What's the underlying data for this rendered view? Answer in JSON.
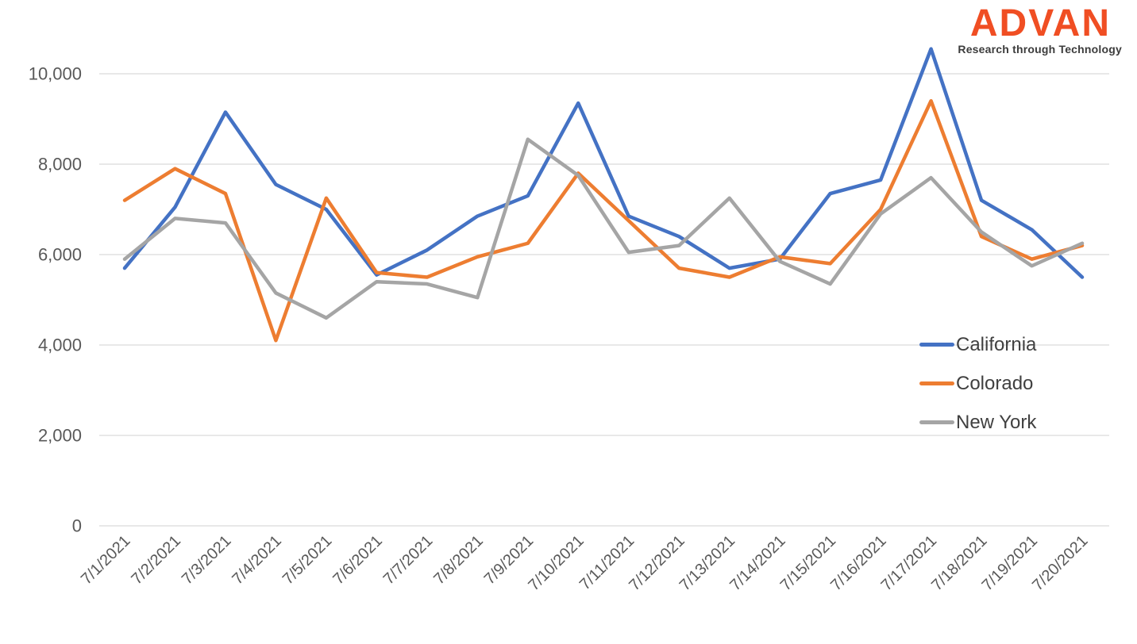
{
  "logo": {
    "brand": "ADVAN",
    "tagline": "Research through Technology",
    "brand_color": "#F04E23",
    "tagline_color": "#3C3C3C"
  },
  "chart_data": {
    "type": "line",
    "title": "",
    "xlabel": "",
    "ylabel": "",
    "categories": [
      "7/1/2021",
      "7/2/2021",
      "7/3/2021",
      "7/4/2021",
      "7/5/2021",
      "7/6/2021",
      "7/7/2021",
      "7/8/2021",
      "7/9/2021",
      "7/10/2021",
      "7/11/2021",
      "7/12/2021",
      "7/13/2021",
      "7/14/2021",
      "7/15/2021",
      "7/16/2021",
      "7/17/2021",
      "7/18/2021",
      "7/19/2021",
      "7/20/2021"
    ],
    "series": [
      {
        "name": "California",
        "color": "#4472C4",
        "values": [
          5700,
          7050,
          9150,
          7550,
          7000,
          5550,
          6100,
          6850,
          7300,
          9350,
          6850,
          6400,
          5700,
          5900,
          7350,
          7650,
          10550,
          7200,
          6550,
          5500
        ]
      },
      {
        "name": "Colorado",
        "color": "#ED7D31",
        "values": [
          7200,
          7900,
          7350,
          4100,
          7250,
          5600,
          5500,
          5950,
          6250,
          7800,
          6750,
          5700,
          5500,
          5950,
          5800,
          7000,
          9400,
          6400,
          5900,
          6200
        ]
      },
      {
        "name": "New York",
        "color": "#A5A5A5",
        "values": [
          5900,
          6800,
          6700,
          5150,
          4600,
          5400,
          5350,
          5050,
          8550,
          7750,
          6050,
          6200,
          7250,
          5850,
          5350,
          6900,
          7700,
          6500,
          5750,
          6250
        ]
      }
    ],
    "ylim": [
      0,
      10000
    ],
    "y_ticks": [
      0,
      2000,
      4000,
      6000,
      8000,
      10000
    ],
    "y_tick_labels": [
      "0",
      "2,000",
      "4,000",
      "6,000",
      "8,000",
      "10,000"
    ],
    "grid": true,
    "gridline_color": "#D9D9D9",
    "axis_label_color": "#595959",
    "legend_position": "middle-right",
    "x_label_rotation_deg": -45
  }
}
